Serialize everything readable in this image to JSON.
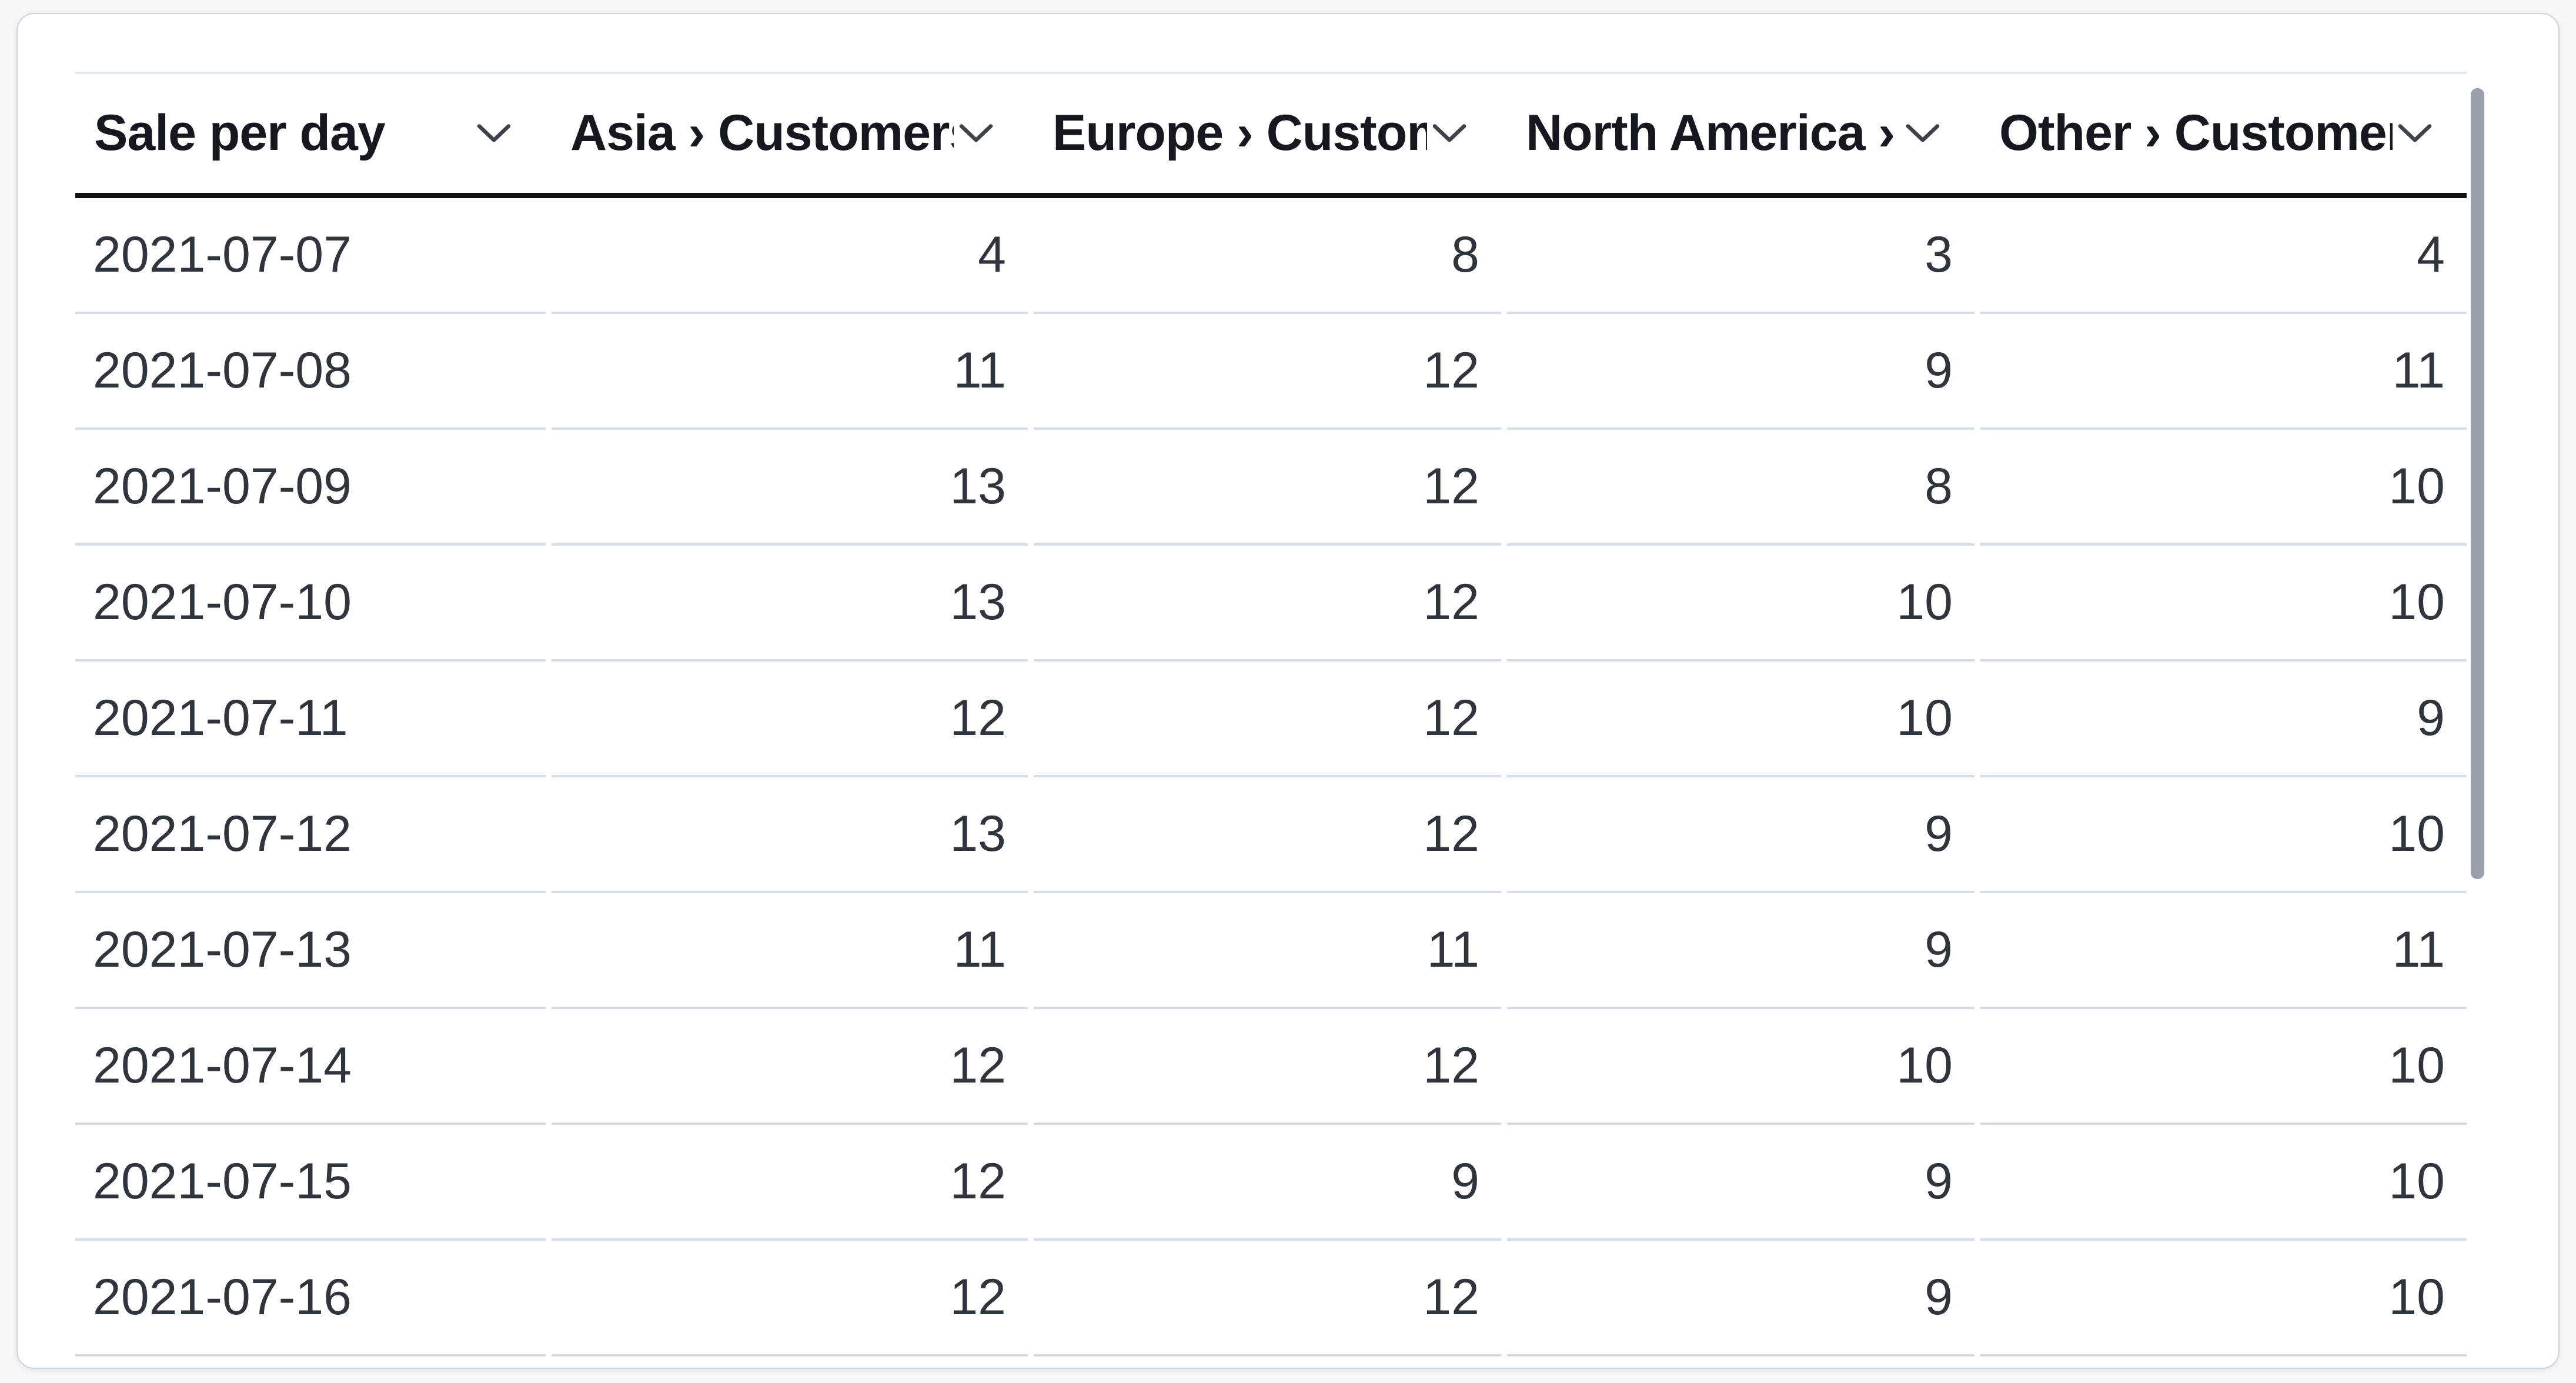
{
  "panel": {
    "background": "#ffffff",
    "border_color": "#ccd4de",
    "page_background": "#f7f8fa"
  },
  "table": {
    "columns": [
      {
        "id": "date",
        "label": "Sale per day",
        "align": "left"
      },
      {
        "id": "asia",
        "label": "Asia › Customers",
        "align": "right"
      },
      {
        "id": "europe",
        "label": "Europe › Customers",
        "align": "right"
      },
      {
        "id": "north_america",
        "label": "North America › Customers",
        "align": "right"
      },
      {
        "id": "other",
        "label": "Other › Customers",
        "align": "right"
      }
    ],
    "rows": [
      {
        "date": "2021-07-07",
        "values": [
          "4",
          "8",
          "3",
          "4"
        ]
      },
      {
        "date": "2021-07-08",
        "values": [
          "11",
          "12",
          "9",
          "11"
        ]
      },
      {
        "date": "2021-07-09",
        "values": [
          "13",
          "12",
          "8",
          "10"
        ]
      },
      {
        "date": "2021-07-10",
        "values": [
          "13",
          "12",
          "10",
          "10"
        ]
      },
      {
        "date": "2021-07-11",
        "values": [
          "12",
          "12",
          "10",
          "9"
        ]
      },
      {
        "date": "2021-07-12",
        "values": [
          "13",
          "12",
          "9",
          "10"
        ]
      },
      {
        "date": "2021-07-13",
        "values": [
          "11",
          "11",
          "9",
          "11"
        ]
      },
      {
        "date": "2021-07-14",
        "values": [
          "12",
          "12",
          "10",
          "10"
        ]
      },
      {
        "date": "2021-07-15",
        "values": [
          "12",
          "9",
          "9",
          "10"
        ]
      },
      {
        "date": "2021-07-16",
        "values": [
          "12",
          "12",
          "9",
          "10"
        ]
      }
    ]
  },
  "icons": {
    "column_menu": "chevron-down"
  },
  "colors": {
    "header_text": "#15181e",
    "body_text": "#30343d",
    "header_underline": "#0e1116",
    "row_separator": "#d7dde8",
    "table_top_border": "#d9e0ea",
    "chevron": "#3c414a",
    "scrollbar_thumb": "#9aa0a9"
  },
  "scrollbar": {
    "orientation": "vertical",
    "position": "top"
  }
}
